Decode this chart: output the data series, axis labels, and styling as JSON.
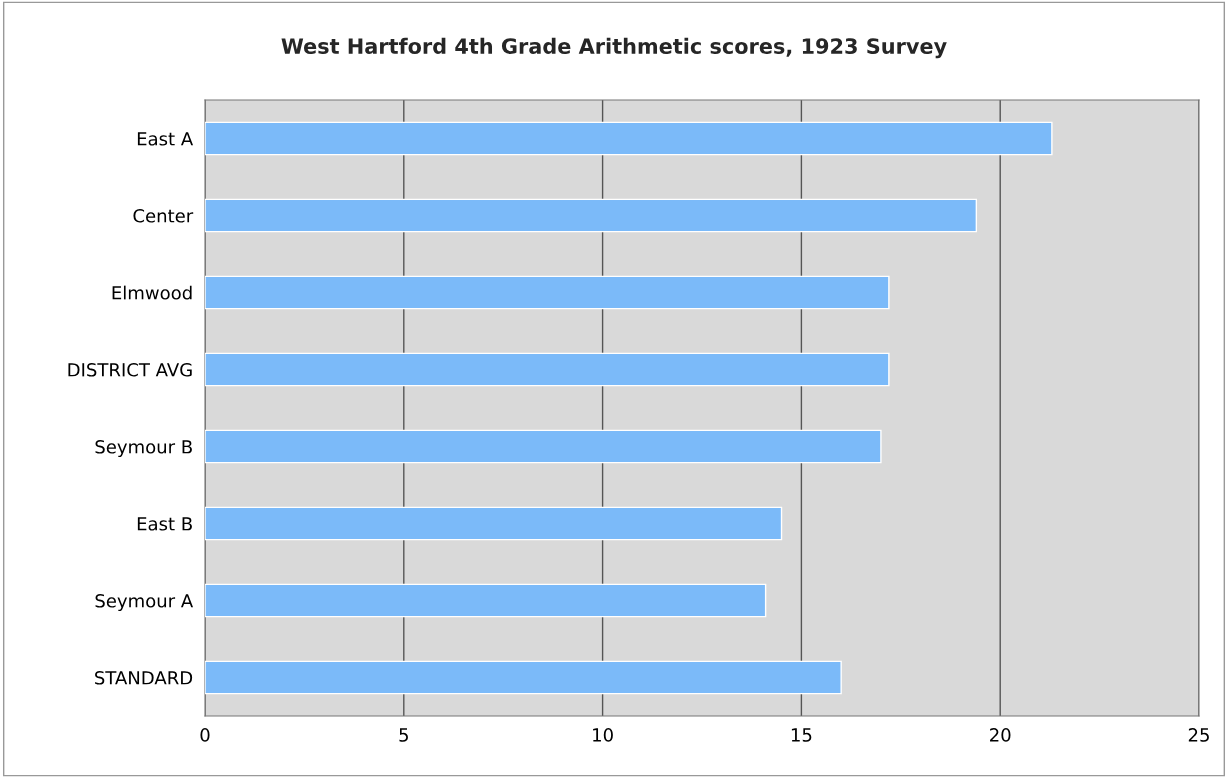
{
  "chart_data": {
    "type": "bar",
    "orientation": "horizontal",
    "title": "West Hartford 4th Grade Arithmetic scores, 1923 Survey",
    "categories": [
      "East A",
      "Center",
      "Elmwood",
      "DISTRICT AVG",
      "Seymour B",
      "East B",
      "Seymour A",
      "STANDARD"
    ],
    "values": [
      21.3,
      19.4,
      17.2,
      17.2,
      17.0,
      14.5,
      14.1,
      16.0
    ],
    "color": "#7bbaf9",
    "xlim": [
      0,
      25
    ],
    "xticks": [
      0,
      5,
      10,
      15,
      20,
      25
    ],
    "grid": "x"
  }
}
